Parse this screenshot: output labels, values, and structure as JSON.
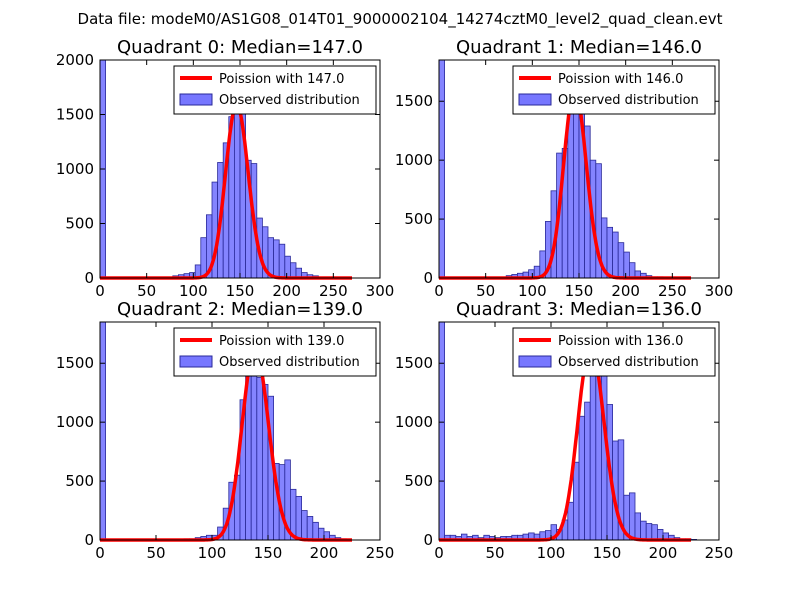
{
  "title": "Data file: modeM0/AS1G08_014T01_9000002104_14274cztM0_level2_quad_clean.evt",
  "colors": {
    "bars_fill": "#7777ff",
    "bars_edge": "#2a2a99",
    "line": "#ff0000",
    "axes": "#000000"
  },
  "chart_data": [
    {
      "type": "bar",
      "title": "Quadrant 0: Median=147.0",
      "median": 147.0,
      "xlim": [
        0,
        300
      ],
      "ylim": [
        0,
        2000
      ],
      "xticks": [
        0,
        50,
        100,
        150,
        200,
        250,
        300
      ],
      "yticks": [
        0,
        500,
        1000,
        1500,
        2000
      ],
      "bin_width": 6,
      "legend": {
        "placement": "top-right",
        "line_label": "Poission with 147.0",
        "bars_label": "Observed distribution"
      },
      "hist_x": [
        0,
        72,
        78,
        84,
        90,
        96,
        102,
        108,
        114,
        120,
        126,
        132,
        138,
        144,
        150,
        156,
        162,
        168,
        174,
        180,
        186,
        192,
        198,
        204,
        210,
        216,
        222,
        228,
        234,
        240,
        246,
        252,
        258
      ],
      "hist_y": [
        2000,
        10,
        20,
        30,
        40,
        50,
        120,
        370,
        580,
        880,
        1060,
        1240,
        1480,
        1820,
        1520,
        1080,
        1050,
        550,
        470,
        370,
        350,
        310,
        200,
        140,
        90,
        50,
        30,
        20,
        10,
        10,
        5,
        5,
        5
      ],
      "poisson_peak": 1590
    },
    {
      "type": "bar",
      "title": "Quadrant 1: Median=146.0",
      "median": 146.0,
      "xlim": [
        0,
        300
      ],
      "ylim": [
        0,
        1850
      ],
      "xticks": [
        0,
        50,
        100,
        150,
        200,
        250,
        300
      ],
      "yticks": [
        0,
        500,
        1000,
        1500
      ],
      "bin_width": 6,
      "legend": {
        "placement": "top-right",
        "line_label": "Poission with 146.0",
        "bars_label": "Observed distribution"
      },
      "hist_x": [
        0,
        72,
        78,
        84,
        90,
        96,
        102,
        108,
        114,
        120,
        126,
        132,
        138,
        144,
        150,
        156,
        162,
        168,
        174,
        180,
        186,
        192,
        198,
        204,
        210,
        216,
        222,
        228,
        234
      ],
      "hist_y": [
        1850,
        20,
        30,
        40,
        50,
        70,
        100,
        230,
        480,
        740,
        1060,
        1100,
        1560,
        1630,
        1550,
        1290,
        1000,
        970,
        510,
        430,
        390,
        300,
        220,
        130,
        60,
        40,
        20,
        10,
        10
      ],
      "poisson_peak": 1600
    },
    {
      "type": "bar",
      "title": "Quadrant 2: Median=139.0",
      "median": 139.0,
      "xlim": [
        0,
        250
      ],
      "ylim": [
        0,
        1850
      ],
      "xticks": [
        0,
        50,
        100,
        150,
        200,
        250
      ],
      "yticks": [
        0,
        500,
        1000,
        1500
      ],
      "bin_width": 5,
      "legend": {
        "placement": "top-right",
        "line_label": "Poission with 139.0",
        "bars_label": "Observed distribution"
      },
      "hist_x": [
        0,
        75,
        80,
        85,
        90,
        95,
        100,
        105,
        110,
        115,
        120,
        125,
        130,
        135,
        140,
        145,
        150,
        155,
        160,
        165,
        170,
        175,
        180,
        185,
        190,
        195,
        200,
        205,
        210,
        215
      ],
      "hist_y": [
        1850,
        10,
        10,
        20,
        30,
        40,
        40,
        110,
        270,
        490,
        550,
        1190,
        1400,
        1540,
        1380,
        1320,
        1220,
        650,
        640,
        680,
        430,
        370,
        250,
        200,
        150,
        100,
        70,
        40,
        20,
        10
      ],
      "poisson_peak": 1620
    },
    {
      "type": "bar",
      "title": "Quadrant 3: Median=136.0",
      "median": 136.0,
      "xlim": [
        0,
        250
      ],
      "ylim": [
        0,
        1850
      ],
      "xticks": [
        0,
        50,
        100,
        150,
        200,
        250
      ],
      "yticks": [
        0,
        500,
        1000,
        1500
      ],
      "bin_width": 5,
      "legend": {
        "placement": "top-right",
        "line_label": "Poission with 136.0",
        "bars_label": "Observed distribution"
      },
      "hist_x": [
        0,
        5,
        10,
        15,
        20,
        25,
        30,
        35,
        40,
        45,
        50,
        55,
        60,
        65,
        70,
        75,
        80,
        85,
        90,
        95,
        100,
        105,
        110,
        115,
        120,
        125,
        130,
        135,
        140,
        145,
        150,
        155,
        160,
        165,
        170,
        175,
        180,
        185,
        190,
        195,
        200,
        205,
        210,
        215,
        220,
        225
      ],
      "hist_y": [
        1850,
        40,
        40,
        30,
        50,
        30,
        40,
        20,
        40,
        30,
        20,
        30,
        30,
        40,
        40,
        50,
        60,
        50,
        70,
        80,
        130,
        90,
        170,
        320,
        660,
        1050,
        1170,
        1470,
        1550,
        1440,
        1150,
        840,
        850,
        380,
        400,
        230,
        160,
        140,
        130,
        90,
        60,
        40,
        20,
        10,
        10,
        5
      ],
      "poisson_peak": 1650
    }
  ]
}
